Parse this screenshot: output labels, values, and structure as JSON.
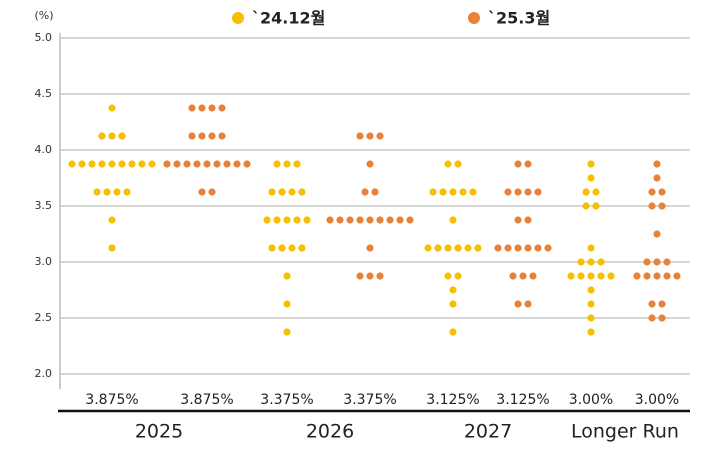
{
  "chart_data": {
    "type": "dotplot",
    "y_label": "(%)",
    "categories": [
      "2025",
      "2026",
      "2027",
      "Longer Run"
    ],
    "ylim": [
      2.0,
      5.0
    ],
    "yticks": [
      {
        "value": 2.0,
        "label": "2.0"
      },
      2.5,
      {
        "value": 3.0,
        "label": "3.0"
      },
      3.5,
      {
        "value": 4.0,
        "label": "4.0"
      },
      4.5,
      {
        "value": 5.0,
        "label": "5.0"
      }
    ],
    "grid": true,
    "series": [
      {
        "name": "`24.12월",
        "color": "#f6c000",
        "values": [
          [
            4.375,
            4.125,
            4.125,
            4.125,
            3.875,
            3.875,
            3.875,
            3.875,
            3.875,
            3.875,
            3.875,
            3.875,
            3.875,
            3.625,
            3.625,
            3.625,
            3.625,
            3.375,
            3.125
          ],
          [
            3.875,
            3.875,
            3.875,
            3.625,
            3.625,
            3.625,
            3.625,
            3.375,
            3.375,
            3.375,
            3.375,
            3.375,
            3.125,
            3.125,
            3.125,
            3.125,
            2.875,
            2.625,
            2.375
          ],
          [
            3.875,
            3.875,
            3.625,
            3.625,
            3.625,
            3.625,
            3.625,
            3.375,
            3.125,
            3.125,
            3.125,
            3.125,
            3.125,
            3.125,
            2.875,
            2.875,
            2.75,
            2.625,
            2.375
          ],
          [
            3.875,
            3.75,
            3.625,
            3.625,
            3.5,
            3.5,
            3.125,
            3.0,
            3.0,
            3.0,
            2.875,
            2.875,
            2.875,
            2.875,
            2.875,
            2.75,
            2.625,
            2.5,
            2.375
          ]
        ],
        "medians": [
          3.875,
          3.375,
          3.125,
          3.0
        ],
        "median_labels": [
          "3.875%",
          "3.375%",
          "3.125%",
          "3.00%"
        ]
      },
      {
        "name": "`25.3월",
        "color": "#e8823a",
        "values": [
          [
            4.375,
            4.375,
            4.375,
            4.375,
            4.125,
            4.125,
            4.125,
            4.125,
            3.875,
            3.875,
            3.875,
            3.875,
            3.875,
            3.875,
            3.875,
            3.875,
            3.875,
            3.625,
            3.625
          ],
          [
            4.125,
            4.125,
            4.125,
            3.875,
            3.625,
            3.625,
            3.375,
            3.375,
            3.375,
            3.375,
            3.375,
            3.375,
            3.375,
            3.375,
            3.375,
            3.125,
            2.875,
            2.875,
            2.875
          ],
          [
            3.875,
            3.875,
            3.625,
            3.625,
            3.625,
            3.625,
            3.375,
            3.375,
            3.125,
            3.125,
            3.125,
            3.125,
            3.125,
            3.125,
            2.875,
            2.875,
            2.875,
            2.625,
            2.625
          ],
          [
            3.875,
            3.75,
            3.625,
            3.625,
            3.5,
            3.5,
            3.25,
            3.0,
            3.0,
            3.0,
            2.875,
            2.875,
            2.875,
            2.875,
            2.875,
            2.625,
            2.625,
            2.5,
            2.5
          ]
        ],
        "medians": [
          3.875,
          3.375,
          3.125,
          3.0
        ],
        "median_labels": [
          "3.875%",
          "3.375%",
          "3.125%",
          "3.00%"
        ]
      }
    ]
  }
}
